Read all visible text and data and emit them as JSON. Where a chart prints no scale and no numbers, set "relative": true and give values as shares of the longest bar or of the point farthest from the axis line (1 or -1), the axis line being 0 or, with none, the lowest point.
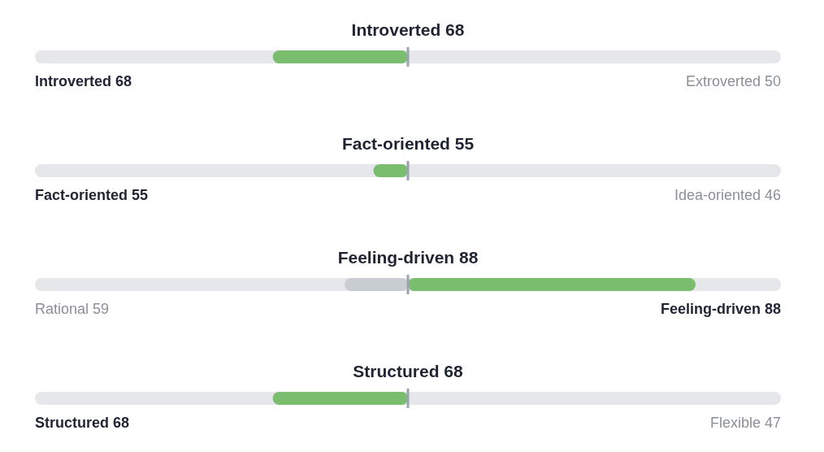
{
  "chart_data": {
    "type": "bar",
    "orientation": "horizontal",
    "relative": true,
    "categories": [
      "Introverted 68",
      "Fact-oriented 55",
      "Feeling-driven 88",
      "Structured 68"
    ],
    "series": [
      {
        "color": "#7bbd6f",
        "values": [
          -0.47,
          -0.12,
          1,
          -0.47
        ]
      },
      {
        "color": "#c9ccd1",
        "values": [
          null,
          null,
          -0.22,
          null
        ]
      }
    ],
    "annotations": [
      "Introverted 68",
      "Extroverted 50",
      "Fact-oriented 55",
      "Idea-oriented 46",
      "Rational 59",
      "Feeling-driven 88",
      "Structured 68",
      "Flexible 47"
    ]
  }
}
